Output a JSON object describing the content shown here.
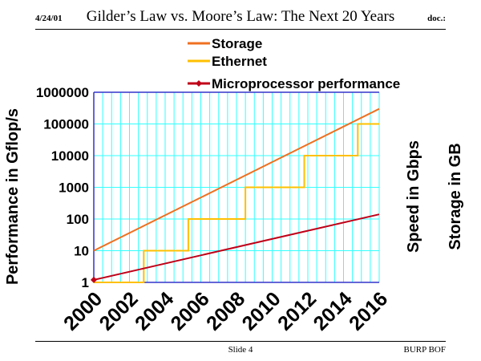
{
  "header": {
    "date": "4/24/01",
    "title": "Gilder’s Law vs. Moore’s Law: The Next 20 Years",
    "doc": "doc.:"
  },
  "footer": {
    "slide": "Slide 4",
    "org": "BURP BOF"
  },
  "colors": {
    "storage": "#f07020",
    "ethernet": "#ffc000",
    "microprocessor": "#c00018",
    "grid": "#33ffff",
    "axis": "#3333cc"
  },
  "chart_data": {
    "type": "line",
    "title": "Gilder’s Law vs. Moore’s Law: The Next 20 Years",
    "ylabel": "Performance in Gflop/s",
    "right_labels": [
      "Speed in Gbps",
      "Storage in GB"
    ],
    "scale": "log10",
    "xlim": [
      2000,
      2016
    ],
    "ylim": [
      1,
      1000000
    ],
    "x_ticks": [
      "2000",
      "2002",
      "2004",
      "2006",
      "2008",
      "2010",
      "2012",
      "2014",
      "2016"
    ],
    "y_ticks": [
      "1",
      "10",
      "100",
      "1000",
      "10000",
      "100000",
      "1000000"
    ],
    "legend_position": "top",
    "series": [
      {
        "name": "Storage",
        "style": "straight",
        "points": [
          [
            2000,
            10
          ],
          [
            2016,
            300000
          ]
        ]
      },
      {
        "name": "Ethernet",
        "style": "step",
        "points": [
          [
            2000,
            1
          ],
          [
            2002.8,
            1
          ],
          [
            2002.8,
            10
          ],
          [
            2005.3,
            10
          ],
          [
            2005.3,
            100
          ],
          [
            2008.5,
            100
          ],
          [
            2008.5,
            1000
          ],
          [
            2011.8,
            1000
          ],
          [
            2011.8,
            10000
          ],
          [
            2014.8,
            10000
          ],
          [
            2014.8,
            100000
          ],
          [
            2016,
            100000
          ]
        ]
      },
      {
        "name": "Microprocessor performance",
        "style": "straight",
        "marker": "diamond",
        "points": [
          [
            2000,
            1.2
          ],
          [
            2016,
            140
          ]
        ]
      }
    ]
  }
}
